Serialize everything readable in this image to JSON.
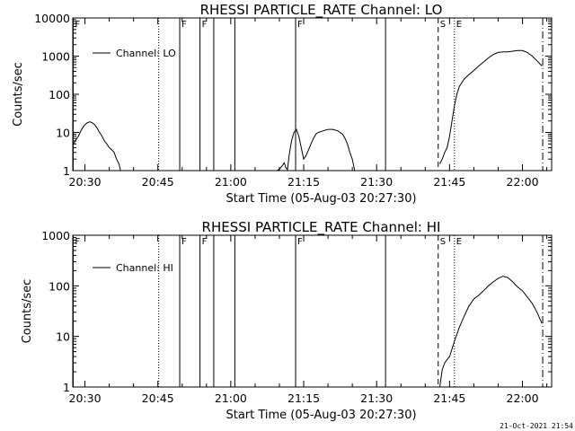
{
  "chart_data": [
    {
      "type": "line",
      "title": "RHESSI PARTICLE_RATE Channel: LO",
      "xlabel": "Start Time (05-Aug-03 20:27:30)",
      "ylabel": "Counts/sec",
      "xlim": [
        "20:27:30",
        "22:06:00"
      ],
      "ylim": [
        1,
        10000
      ],
      "yscale": "log",
      "xticks": [
        "20:30",
        "20:45",
        "21:00",
        "21:15",
        "21:30",
        "21:45",
        "22:00"
      ],
      "yticks": [
        "1",
        "10",
        "100",
        "1000",
        "10000"
      ],
      "legend": {
        "entries": [
          "Channel: LO"
        ],
        "location": "upper-left"
      },
      "grid": false,
      "series": [
        {
          "name": "Channel: LO",
          "segments": [
            {
              "x": [
                "20:27:40",
                "20:28:00",
                "20:28:20",
                "20:28:40",
                "20:29:00",
                "20:29:20",
                "20:29:40",
                "20:30:00",
                "20:30:30",
                "20:31:00",
                "20:31:30",
                "20:32:00",
                "20:32:30",
                "20:33:00",
                "20:33:30",
                "20:34:00",
                "20:34:30",
                "20:35:00",
                "20:35:30",
                "20:36:00",
                "20:36:30",
                "20:37:00",
                "20:37:20"
              ],
              "y": [
                5,
                6,
                7,
                8,
                10,
                12,
                14,
                16,
                18,
                19,
                18,
                16,
                13,
                10,
                8,
                6,
                5,
                4,
                3.5,
                3,
                2,
                1.5,
                1
              ]
            },
            {
              "x": [
                "21:09:30",
                "21:10:00",
                "21:10:30",
                "21:11:00",
                "21:11:20",
                "21:11:40",
                "21:12:00",
                "21:12:30",
                "21:13:00",
                "21:13:30",
                "21:14:00",
                "21:14:30",
                "21:15:00",
                "21:15:30",
                "21:16:00",
                "21:16:30",
                "21:17:00",
                "21:17:30",
                "21:18:00",
                "21:19:00",
                "21:20:00",
                "21:21:00",
                "21:22:00",
                "21:23:00",
                "21:23:30",
                "21:24:00",
                "21:24:30",
                "21:25:00",
                "21:25:30"
              ],
              "y": [
                1,
                1.1,
                1.3,
                1.6,
                1.2,
                1.05,
                2.5,
                6,
                10,
                12,
                8,
                4,
                2,
                2.5,
                3.5,
                5,
                7,
                9,
                10,
                11,
                12,
                12,
                11,
                9,
                7,
                5,
                3,
                2,
                1
              ]
            },
            {
              "x": [
                "21:43:00",
                "21:43:30",
                "21:44:00",
                "21:44:30",
                "21:45:00",
                "21:45:30",
                "21:46:00",
                "21:46:30",
                "21:47:00",
                "21:48:00",
                "21:49:00",
                "21:50:00",
                "21:51:00",
                "21:52:00",
                "21:53:00",
                "21:54:00",
                "21:55:00",
                "21:56:00",
                "21:57:00",
                "21:58:00",
                "21:59:00",
                "22:00:00",
                "22:01:00",
                "22:02:00",
                "22:03:00",
                "22:04:00"
              ],
              "y": [
                1.5,
                2,
                3,
                4,
                8,
                20,
                50,
                100,
                160,
                250,
                330,
                420,
                550,
                700,
                900,
                1100,
                1250,
                1300,
                1300,
                1350,
                1400,
                1400,
                1250,
                1000,
                750,
                550
              ]
            }
          ]
        }
      ],
      "annotations": [
        {
          "label": "F",
          "x": "20:27:35",
          "style": "solid"
        },
        {
          "label": "",
          "x": "20:45:10",
          "style": "dotted"
        },
        {
          "label": "F",
          "x": "20:49:30",
          "style": "solid"
        },
        {
          "label": "F",
          "x": "20:53:40",
          "style": "solid"
        },
        {
          "label": "",
          "x": "20:56:30",
          "style": "solid"
        },
        {
          "label": "",
          "x": "21:00:50",
          "style": "solid"
        },
        {
          "label": "F",
          "x": "21:13:20",
          "style": "solid"
        },
        {
          "label": "",
          "x": "21:31:50",
          "style": "solid"
        },
        {
          "label": "S",
          "x": "21:42:40",
          "style": "dashed"
        },
        {
          "label": "E",
          "x": "21:46:00",
          "style": "dotted"
        },
        {
          "label": "",
          "x": "22:04:10",
          "style": "dashdot"
        }
      ]
    },
    {
      "type": "line",
      "title": "RHESSI PARTICLE_RATE Channel: HI",
      "xlabel": "Start Time (05-Aug-03 20:27:30)",
      "ylabel": "Counts/sec",
      "xlim": [
        "20:27:30",
        "22:06:00"
      ],
      "ylim": [
        1,
        1000
      ],
      "yscale": "log",
      "xticks": [
        "20:30",
        "20:45",
        "21:00",
        "21:15",
        "21:30",
        "21:45",
        "22:00"
      ],
      "yticks": [
        "1",
        "10",
        "100",
        "1000"
      ],
      "legend": {
        "entries": [
          "Channel: HI"
        ],
        "location": "upper-left"
      },
      "grid": false,
      "series": [
        {
          "name": "Channel: HI",
          "segments": [
            {
              "x": [
                "21:43:00",
                "21:43:30",
                "21:44:00",
                "21:44:30",
                "21:45:00",
                "21:46:00",
                "21:47:00",
                "21:48:00",
                "21:49:00",
                "21:50:00",
                "21:51:00",
                "21:52:00",
                "21:53:00",
                "21:54:00",
                "21:55:00",
                "21:56:00",
                "21:57:00",
                "21:58:00",
                "21:59:00",
                "22:00:00",
                "22:01:00",
                "22:02:00",
                "22:03:00",
                "22:04:00"
              ],
              "y": [
                1,
                2.2,
                3,
                3.5,
                4,
                8,
                15,
                25,
                40,
                55,
                65,
                80,
                100,
                120,
                140,
                155,
                145,
                120,
                95,
                80,
                60,
                45,
                30,
                18
              ]
            }
          ]
        }
      ],
      "annotations": [
        {
          "label": "F",
          "x": "20:27:35",
          "style": "solid"
        },
        {
          "label": "",
          "x": "20:45:10",
          "style": "dotted"
        },
        {
          "label": "F",
          "x": "20:49:30",
          "style": "solid"
        },
        {
          "label": "F",
          "x": "20:53:40",
          "style": "solid"
        },
        {
          "label": "",
          "x": "20:56:30",
          "style": "solid"
        },
        {
          "label": "",
          "x": "21:00:50",
          "style": "solid"
        },
        {
          "label": "F",
          "x": "21:13:20",
          "style": "solid"
        },
        {
          "label": "",
          "x": "21:31:50",
          "style": "solid"
        },
        {
          "label": "S",
          "x": "21:42:40",
          "style": "dashed"
        },
        {
          "label": "E",
          "x": "21:46:00",
          "style": "dotted"
        },
        {
          "label": "",
          "x": "22:04:10",
          "style": "dashdot"
        }
      ]
    }
  ],
  "footer": {
    "timestamp": "21-Oct-2021 21:54"
  }
}
